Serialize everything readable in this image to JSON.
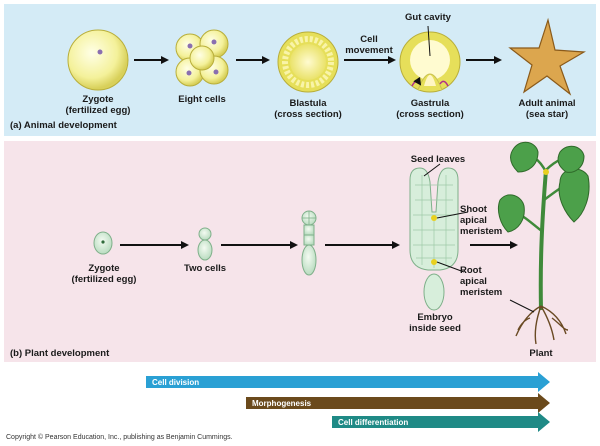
{
  "animal": {
    "title": "(a) Animal development",
    "zygote_label": [
      "Zygote",
      "(fertilized egg)"
    ],
    "eight_cells_label": "Eight cells",
    "blastula_label": [
      "Blastula",
      "(cross section)"
    ],
    "cell_movement_label": [
      "Cell",
      "movement"
    ],
    "gut_cavity_label": "Gut cavity",
    "gastrula_label": [
      "Gastrula",
      "(cross section)"
    ],
    "adult_label": [
      "Adult animal",
      "(sea star)"
    ]
  },
  "plant": {
    "title": "(b) Plant development",
    "zygote_label": [
      "Zygote",
      "(fertilized egg)"
    ],
    "two_cells_label": "Two cells",
    "seed_leaves_label": "Seed leaves",
    "shoot_meristem_label": [
      "Shoot",
      "apical",
      "meristem"
    ],
    "root_meristem_label": [
      "Root",
      "apical",
      "meristem"
    ],
    "embryo_label": [
      "Embryo",
      "inside seed"
    ],
    "plant_label": "Plant"
  },
  "timeline": {
    "cell_division": "Cell division",
    "morphogenesis": "Morphogenesis",
    "cell_differentiation": "Cell differentiation"
  },
  "colors": {
    "animal_bg": "#d4ebf6",
    "plant_bg": "#f6e4ea",
    "cell_division_bar": "#2aa0d4",
    "morphogenesis_bar": "#6b4a1c",
    "cell_differentiation_bar": "#1f8a86"
  },
  "copyright": "Copyright © Pearson Education, Inc., publishing as Benjamin Cummings."
}
